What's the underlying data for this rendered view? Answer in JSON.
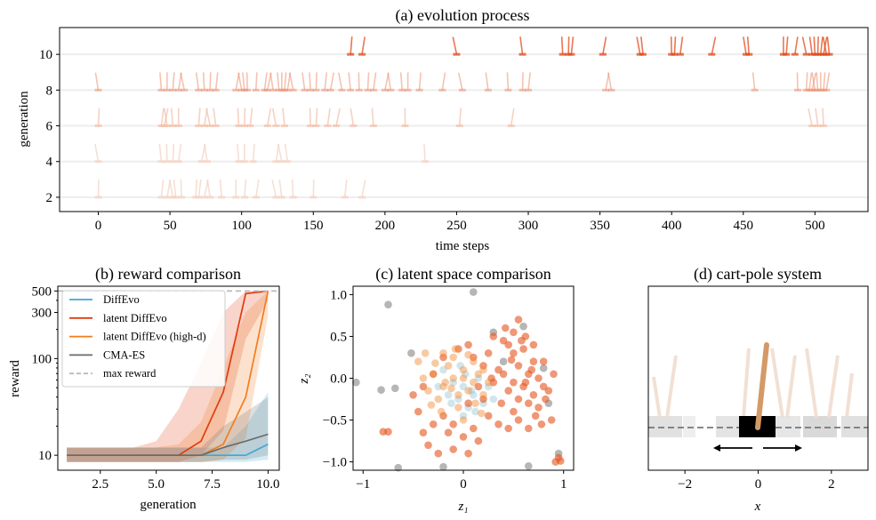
{
  "chart_data": [
    {
      "type": "scatter",
      "title": "(a) evolution process",
      "xlabel": "time steps",
      "ylabel": "generation",
      "xlim": [
        -27,
        537
      ],
      "ylim": [
        1.2,
        11.5
      ],
      "xticks": [
        "0",
        "50",
        "100",
        "150",
        "200",
        "250",
        "300",
        "350",
        "400",
        "450",
        "500"
      ],
      "yticks": [
        "2",
        "4",
        "6",
        "8",
        "10"
      ],
      "rows": [
        {
          "generation": 2,
          "steps": [
            0,
            44,
            48,
            52,
            54,
            58,
            68,
            70,
            74,
            78,
            86,
            96,
            102,
            110,
            124,
            128,
            136,
            150,
            172,
            184
          ],
          "color": "#f3d2c2"
        },
        {
          "generation": 4,
          "steps": [
            0,
            44,
            48,
            52,
            56,
            72,
            76,
            98,
            102,
            108,
            124,
            128,
            132,
            228
          ],
          "color": "#f3d2c2"
        },
        {
          "generation": 6,
          "steps": [
            0,
            44,
            46,
            48,
            52,
            56,
            70,
            74,
            78,
            82,
            98,
            102,
            106,
            118,
            124,
            130,
            148,
            152,
            160,
            166,
            178,
            192,
            214,
            252,
            288,
            498,
            502,
            506
          ],
          "color": "#f2c0aa"
        },
        {
          "generation": 8,
          "steps": [
            0,
            44,
            48,
            52,
            56,
            60,
            70,
            74,
            78,
            82,
            96,
            100,
            102,
            104,
            110,
            116,
            118,
            122,
            126,
            128,
            130,
            132,
            136,
            144,
            148,
            152,
            158,
            162,
            170,
            176,
            182,
            188,
            192,
            200,
            204,
            212,
            216,
            224,
            240,
            254,
            272,
            286,
            296,
            300,
            354,
            358,
            458,
            488,
            494,
            496,
            498,
            500,
            502,
            504,
            506,
            508
          ],
          "color": "#ed9272"
        },
        {
          "generation": 10,
          "steps": [
            176,
            184,
            250,
            296,
            324,
            328,
            330,
            352,
            378,
            380,
            400,
            402,
            406,
            428,
            452,
            454,
            478,
            480,
            486,
            494,
            498,
            500,
            502,
            504,
            506,
            508,
            510
          ],
          "color": "#e24a1a"
        }
      ]
    },
    {
      "type": "line",
      "title": "(b) reward comparison",
      "xlabel": "generation",
      "ylabel": "reward",
      "yscale": "log",
      "xlim": [
        0.6,
        10.5
      ],
      "ylim": [
        7,
        560
      ],
      "xticks": [
        "2.5",
        "5.0",
        "7.5",
        "10.0"
      ],
      "yticks": [
        "10",
        "100",
        "300",
        "500"
      ],
      "x": [
        1,
        2,
        3,
        4,
        5,
        6,
        7,
        8,
        9,
        10
      ],
      "series": [
        {
          "name": "DiffEvo",
          "color": "#3aa9d4",
          "values": [
            10,
            10,
            10,
            10,
            10,
            10,
            10,
            10,
            10,
            13
          ],
          "lower": [
            8.5,
            8.5,
            8.5,
            8.5,
            8.5,
            8.5,
            8.5,
            8.5,
            8.5,
            9
          ],
          "upper": [
            12,
            12,
            12,
            12,
            12,
            12,
            12,
            12,
            20,
            45
          ]
        },
        {
          "name": "latent DiffEvo",
          "color": "#e03c0e",
          "values": [
            10,
            10,
            10,
            10,
            10,
            10,
            14,
            45,
            470,
            500
          ],
          "lower": [
            8.5,
            8.5,
            8.5,
            8.5,
            8.5,
            8.5,
            10,
            18,
            160,
            400
          ],
          "upper": [
            12,
            12,
            12,
            12,
            14,
            30,
            90,
            300,
            500,
            500
          ]
        },
        {
          "name": "latent DiffEvo (high-d)",
          "color": "#f27d1e",
          "values": [
            10,
            10,
            10,
            10,
            10,
            10,
            10,
            13,
            40,
            500
          ],
          "lower": [
            8.5,
            8.5,
            8.5,
            8.5,
            8.5,
            8.5,
            8.5,
            9,
            15,
            280
          ],
          "upper": [
            12,
            12,
            12,
            12,
            12,
            13,
            22,
            80,
            300,
            500
          ]
        },
        {
          "name": "CMA-ES",
          "color": "#6b6b6b",
          "values": [
            10,
            10,
            10,
            10,
            10,
            10,
            10,
            12,
            14,
            16.5
          ],
          "lower": [
            8.5,
            8.5,
            8.5,
            8.5,
            8.5,
            8.5,
            8.5,
            9,
            9,
            10
          ],
          "upper": [
            12,
            12,
            12,
            12,
            12,
            12,
            12,
            20,
            28,
            40
          ]
        },
        {
          "name": "max reward",
          "color": "#bbbbbb",
          "dashed": true,
          "values": [
            500,
            500,
            500,
            500,
            500,
            500,
            500,
            500,
            500,
            500
          ]
        }
      ]
    },
    {
      "type": "scatter",
      "title": "(c) latent space comparison",
      "xlabel": "z₁",
      "ylabel": "z₂",
      "xlim": [
        -1.1,
        1.1
      ],
      "ylim": [
        -1.1,
        1.1
      ],
      "xticks": [
        "−1",
        "0",
        "1"
      ],
      "yticks": [
        "−1.0",
        "−0.5",
        "0.0",
        "0.5",
        "1.0"
      ],
      "series": [
        {
          "name": "CMA-ES",
          "color": "#9e9e9e",
          "points": [
            [
              0.1,
              1.03
            ],
            [
              -0.75,
              0.88
            ],
            [
              -0.52,
              0.3
            ],
            [
              -0.82,
              -0.14
            ],
            [
              -0.68,
              -0.12
            ],
            [
              0.6,
              0.62
            ],
            [
              0.8,
              0.12
            ],
            [
              -1.07,
              -0.05
            ],
            [
              0.65,
              -1.05
            ],
            [
              -0.65,
              -1.07
            ],
            [
              -0.2,
              -1.06
            ],
            [
              0.3,
              0.55
            ],
            [
              0.4,
              0.2
            ],
            [
              0.85,
              -0.3
            ],
            [
              0.95,
              -0.9
            ]
          ]
        },
        {
          "name": "DiffEvo",
          "color": "#98c6d8",
          "points": [
            [
              0.0,
              -0.1
            ],
            [
              -0.05,
              -0.25
            ],
            [
              0.05,
              -0.35
            ],
            [
              0.1,
              -0.2
            ],
            [
              -0.1,
              -0.05
            ],
            [
              0.15,
              0.0
            ],
            [
              0.02,
              0.05
            ],
            [
              -0.12,
              -0.3
            ],
            [
              0.2,
              -0.3
            ],
            [
              0.0,
              -0.45
            ],
            [
              -0.2,
              0.1
            ],
            [
              0.08,
              -0.15
            ],
            [
              -0.03,
              0.15
            ],
            [
              0.25,
              -0.1
            ],
            [
              -0.15,
              -0.2
            ],
            [
              0.12,
              -0.4
            ],
            [
              0.3,
              -0.25
            ],
            [
              -0.25,
              -0.1
            ]
          ]
        },
        {
          "name": "latent DiffEvo",
          "color": "#e4541c",
          "points": [
            [
              0.45,
              0.4
            ],
            [
              0.5,
              0.3
            ],
            [
              0.6,
              0.35
            ],
            [
              0.7,
              0.2
            ],
            [
              0.55,
              0.15
            ],
            [
              0.65,
              0.05
            ],
            [
              0.75,
              0.0
            ],
            [
              0.8,
              -0.1
            ],
            [
              0.7,
              -0.2
            ],
            [
              0.6,
              -0.1
            ],
            [
              0.5,
              -0.05
            ],
            [
              0.4,
              0.05
            ],
            [
              0.35,
              0.1
            ],
            [
              0.3,
              -0.05
            ],
            [
              0.45,
              -0.15
            ],
            [
              0.55,
              -0.25
            ],
            [
              0.65,
              -0.3
            ],
            [
              0.75,
              -0.35
            ],
            [
              0.85,
              -0.15
            ],
            [
              0.9,
              0.05
            ],
            [
              0.8,
              0.2
            ],
            [
              0.7,
              0.4
            ],
            [
              0.62,
              0.5
            ],
            [
              0.5,
              0.55
            ],
            [
              0.4,
              0.45
            ],
            [
              0.25,
              0.3
            ],
            [
              0.2,
              0.15
            ],
            [
              0.15,
              -0.1
            ],
            [
              0.2,
              -0.25
            ],
            [
              0.25,
              -0.45
            ],
            [
              0.35,
              -0.55
            ],
            [
              0.45,
              -0.6
            ],
            [
              0.55,
              -0.5
            ],
            [
              0.65,
              -0.6
            ],
            [
              0.78,
              -0.55
            ],
            [
              0.88,
              -0.5
            ],
            [
              0.95,
              -0.95
            ],
            [
              0.92,
              -1.0
            ],
            [
              0.97,
              -0.99
            ],
            [
              0.1,
              -0.6
            ],
            [
              0.0,
              -0.7
            ],
            [
              -0.1,
              -0.55
            ],
            [
              -0.2,
              -0.45
            ],
            [
              -0.3,
              -0.55
            ],
            [
              -0.4,
              -0.65
            ],
            [
              -0.35,
              -0.8
            ],
            [
              -0.25,
              -0.9
            ],
            [
              -0.1,
              -0.85
            ],
            [
              0.05,
              -0.9
            ],
            [
              -0.45,
              -0.4
            ],
            [
              -0.5,
              -0.2
            ],
            [
              -0.4,
              -0.1
            ],
            [
              -0.3,
              0.05
            ],
            [
              -0.2,
              0.25
            ],
            [
              -0.05,
              0.35
            ],
            [
              0.05,
              0.4
            ],
            [
              0.1,
              0.25
            ],
            [
              -0.75,
              -0.64
            ],
            [
              -0.8,
              -0.64
            ],
            [
              0.48,
              0.22
            ],
            [
              0.58,
              0.45
            ],
            [
              0.68,
              0.1
            ],
            [
              0.38,
              -0.3
            ],
            [
              0.28,
              0.0
            ],
            [
              0.42,
              0.6
            ],
            [
              0.55,
              0.7
            ],
            [
              0.3,
              0.5
            ],
            [
              0.05,
              -0.3
            ],
            [
              -0.15,
              -0.65
            ],
            [
              0.15,
              -0.75
            ],
            [
              0.72,
              -0.45
            ],
            [
              0.82,
              -0.25
            ],
            [
              0.5,
              -0.4
            ],
            [
              0.62,
              -0.05
            ]
          ]
        },
        {
          "name": "latent DiffEvo (high-d)",
          "color": "#f08a36",
          "points": [
            [
              -0.1,
              0.0
            ],
            [
              -0.2,
              -0.1
            ],
            [
              -0.3,
              0.05
            ],
            [
              -0.15,
              0.15
            ],
            [
              0.0,
              0.1
            ],
            [
              0.1,
              -0.05
            ],
            [
              -0.05,
              -0.2
            ],
            [
              -0.25,
              -0.25
            ],
            [
              -0.35,
              -0.15
            ],
            [
              0.05,
              -0.15
            ],
            [
              0.15,
              0.05
            ],
            [
              -0.1,
              0.25
            ],
            [
              -0.2,
              0.3
            ],
            [
              0.1,
              0.2
            ],
            [
              0.2,
              -0.2
            ],
            [
              -0.4,
              0.0
            ],
            [
              -0.05,
              -0.35
            ],
            [
              0.12,
              -0.3
            ],
            [
              -0.28,
              0.18
            ],
            [
              0.0,
              0.0
            ],
            [
              -0.18,
              -0.05
            ],
            [
              0.05,
              0.28
            ],
            [
              -0.12,
              -0.12
            ],
            [
              0.2,
              0.1
            ],
            [
              -0.32,
              -0.32
            ],
            [
              0.25,
              -0.05
            ],
            [
              -0.08,
              0.35
            ],
            [
              0.0,
              -0.5
            ],
            [
              -0.22,
              -0.4
            ],
            [
              0.18,
              -0.42
            ],
            [
              -0.45,
              0.2
            ],
            [
              -0.38,
              0.3
            ]
          ]
        }
      ]
    },
    {
      "type": "diagram",
      "title": "(d) cart-pole system",
      "xlabel": "x",
      "xlim": [
        -3,
        3
      ],
      "xticks": [
        "−2",
        "0",
        "2"
      ]
    }
  ]
}
